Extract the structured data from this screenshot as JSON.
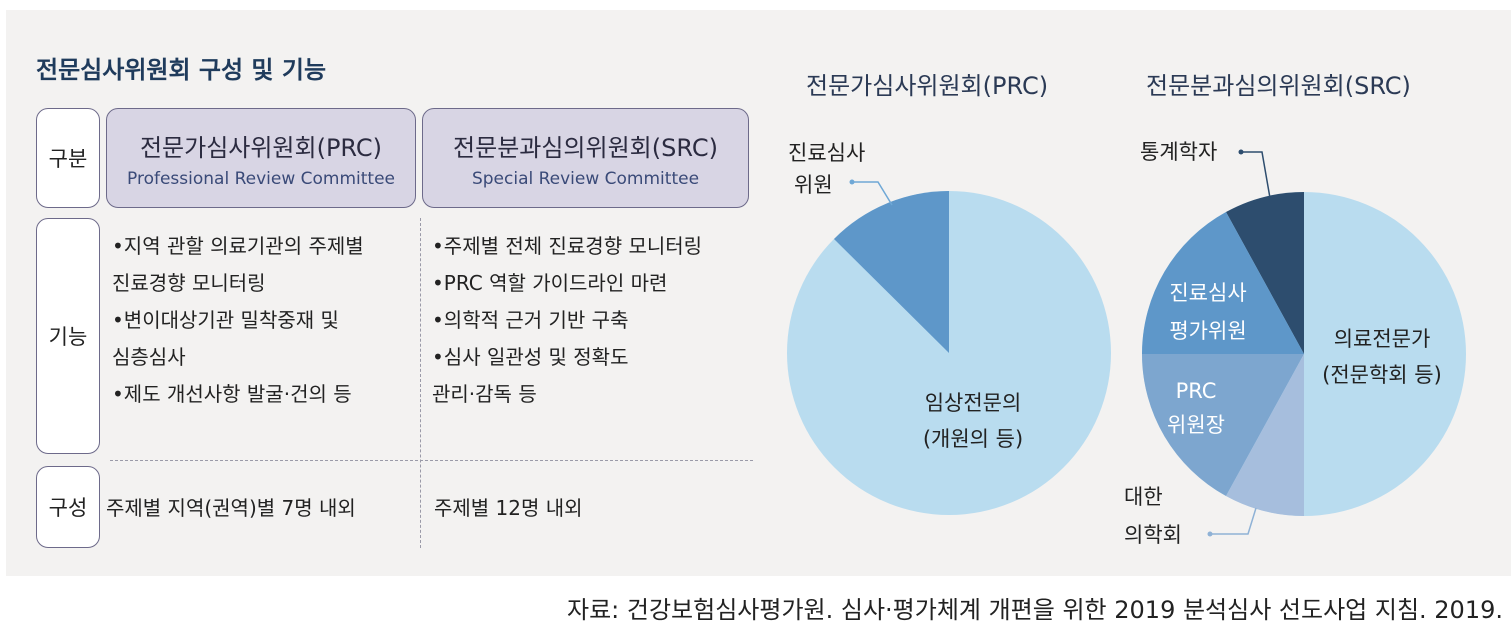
{
  "heading": "전문심사위원회 구성 및 기능",
  "table": {
    "header_label": "구분",
    "prc": {
      "name_ko": "전문가심사위원회(PRC)",
      "name_en": "Professional Review Committee"
    },
    "src": {
      "name_ko": "전문분과심의위원회(SRC)",
      "name_en": "Special Review Committee"
    },
    "function_label": "기능",
    "prc_functions": [
      "•지역 관할 의료기관의 주제별",
      "진료경향 모니터링",
      "•변이대상기관 밀착중재 및",
      "심층심사",
      "•제도 개선사항 발굴·건의 등"
    ],
    "src_functions": [
      "•주제별 전체 진료경향 모니터링",
      "•PRC 역할 가이드라인 마련",
      "•의학적 근거 기반 구축",
      "•심사 일관성 및 정확도",
      "관리·감독 등"
    ],
    "composition_label": "구성",
    "prc_composition": "주제별 지역(권역)별 7명 내외",
    "src_composition": "주제별 12명 내외"
  },
  "pies": {
    "prc": {
      "title": "전문가심사위원회(PRC)",
      "label_reviewer_1": "진료심사",
      "label_reviewer_2": "위원",
      "label_clinical_1": "임상전문의",
      "label_clinical_2": "(개원의 등)"
    },
    "src": {
      "title": "전문분과심의위원회(SRC)",
      "label_stat": "통계학자",
      "label_eval_1": "진료심사",
      "label_eval_2": "평가위원",
      "label_med_1": "의료전문가",
      "label_med_2": "(전문학회 등)",
      "label_chair_1": "PRC",
      "label_chair_2": "위원장",
      "label_kma_1": "대한",
      "label_kma_2": "의학회"
    }
  },
  "colors": {
    "light_blue": "#b9dcef",
    "mid_blue": "#5e97c9",
    "steel_blue": "#7da6cf",
    "pale_blue": "#a6bedd",
    "dark_navy": "#2d4d6e"
  },
  "source": "자료: 건강보험심사평가원. 심사·평가체계 개편을 위한 2019 분석심사 선도사업 지침. 2019."
}
